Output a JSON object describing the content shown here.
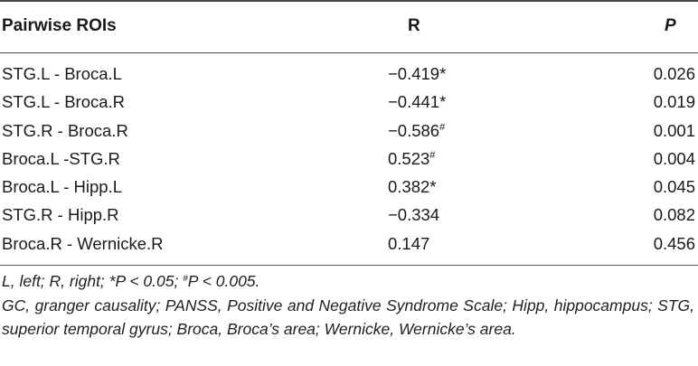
{
  "table": {
    "headers": {
      "roi": "Pairwise ROIs",
      "r": "R",
      "p": "P"
    },
    "rows": [
      {
        "roi": "STG.L - Broca.L",
        "r": "−0.419*",
        "r_sup": "",
        "p": "0.026"
      },
      {
        "roi": "STG.L - Broca.R",
        "r": "−0.441*",
        "r_sup": "",
        "p": "0.019"
      },
      {
        "roi": "STG.R - Broca.R",
        "r": "−0.586",
        "r_sup": "#",
        "p": "0.001"
      },
      {
        "roi": "Broca.L -STG.R",
        "r": "0.523",
        "r_sup": "#",
        "p": "0.004"
      },
      {
        "roi": "Broca.L - Hipp.L",
        "r": "0.382*",
        "r_sup": "",
        "p": "0.045"
      },
      {
        "roi": "STG.R - Hipp.R",
        "r": "−0.334",
        "r_sup": "",
        "p": "0.082"
      },
      {
        "roi": "Broca.R - Wernicke.R",
        "r": "0.147",
        "r_sup": "",
        "p": "0.456"
      }
    ]
  },
  "notes": {
    "line1_a": "L, left; R, right; *P < 0.05; ",
    "line1_sup": "#",
    "line1_b": "P < 0.005.",
    "line2": "GC, granger causality; PANSS, Positive and Negative Syndrome Scale; Hipp, hippocampus; STG, superior temporal gyrus; Broca, Broca’s area; Wernicke, Wernicke’s area."
  }
}
